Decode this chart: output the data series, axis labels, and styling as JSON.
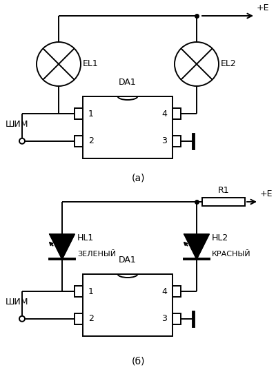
{
  "fig_width": 4.0,
  "fig_height": 5.43,
  "dpi": 100,
  "bg_color": "#ffffff",
  "line_color": "#000000",
  "lw": 1.4,
  "label_a": "(а)",
  "label_b": "(б)",
  "da1_label": "DA1",
  "shim_label": "ШИМ",
  "plus_e_label": "+E",
  "r1_label": "R1",
  "el1_label": "EL1",
  "el2_label": "EL2",
  "hl1_label": "HL1",
  "hl2_label": "HL2",
  "green_label": "ЗЕЛЕНЫЙ",
  "red_label": "КРАСНЫЙ",
  "pin1": "1",
  "pin2": "2",
  "pin3": "3",
  "pin4": "4"
}
